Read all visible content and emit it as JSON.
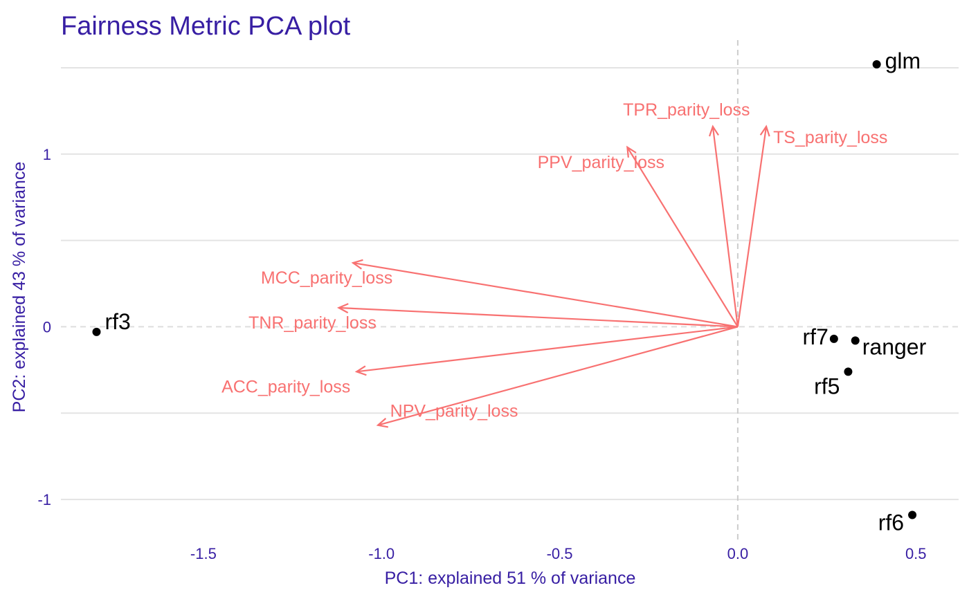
{
  "chart_data": {
    "type": "scatter",
    "title": "Fairness Metric PCA plot",
    "xlabel": "PC1: explained 51 % of variance",
    "ylabel": "PC2: explained 43 % of variance",
    "xlim": [
      -1.9,
      0.62
    ],
    "ylim": [
      -1.24,
      1.66
    ],
    "x_ticks": [
      -1.5,
      -1.0,
      -0.5,
      0.0,
      0.5
    ],
    "x_tick_labels": [
      "-1.5",
      "-1.0",
      "-0.5",
      "0.0",
      "0.5"
    ],
    "y_ticks": [
      -1,
      0,
      1
    ],
    "y_tick_labels": [
      "-1",
      "0",
      "1"
    ],
    "grid": "horizontal",
    "reference_lines": {
      "x": 0,
      "y": 0,
      "style": "dashed"
    },
    "points": [
      {
        "label": "glm",
        "x": 0.39,
        "y": 1.52
      },
      {
        "label": "rf3",
        "x": -1.8,
        "y": -0.03
      },
      {
        "label": "rf7",
        "x": 0.27,
        "y": -0.07
      },
      {
        "label": "ranger",
        "x": 0.33,
        "y": -0.08
      },
      {
        "label": "rf5",
        "x": 0.31,
        "y": -0.26
      },
      {
        "label": "rf6",
        "x": 0.49,
        "y": -1.09
      }
    ],
    "loadings": [
      {
        "label": "TPR_parity_loss",
        "x": -0.07,
        "y": 1.16
      },
      {
        "label": "TS_parity_loss",
        "x": 0.08,
        "y": 1.16
      },
      {
        "label": "PPV_parity_loss",
        "x": -0.31,
        "y": 1.04
      },
      {
        "label": "MCC_parity_loss",
        "x": -1.08,
        "y": 0.37
      },
      {
        "label": "TNR_parity_loss",
        "x": -1.12,
        "y": 0.11
      },
      {
        "label": "ACC_parity_loss",
        "x": -1.07,
        "y": -0.26
      },
      {
        "label": "NPV_parity_loss",
        "x": -1.01,
        "y": -0.57
      }
    ],
    "colors": {
      "title": "#371ea3",
      "axis_text": "#371ea3",
      "loading": "#f87171",
      "point": "#000000",
      "grid": "#e3e3e3",
      "reference": "#cccccc"
    }
  }
}
